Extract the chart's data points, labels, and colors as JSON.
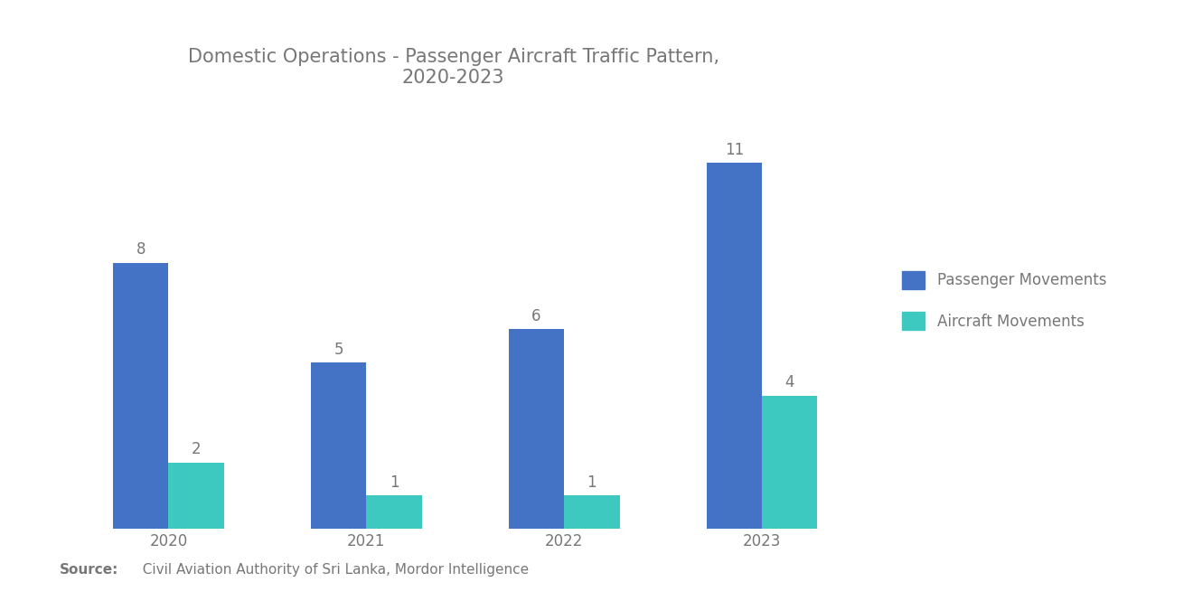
{
  "title": "Domestic Operations - Passenger Aircraft Traffic Pattern,\n2020-2023",
  "years": [
    "2020",
    "2021",
    "2022",
    "2023"
  ],
  "passenger_movements": [
    8,
    5,
    6,
    11
  ],
  "aircraft_movements": [
    2,
    1,
    1,
    4
  ],
  "passenger_color": "#4472C4",
  "aircraft_color": "#3EC9C0",
  "background_color": "#FFFFFF",
  "bar_width": 0.28,
  "ylim": [
    0,
    13
  ],
  "legend_labels": [
    "Passenger Movements",
    "Aircraft Movements"
  ],
  "source_bold": "Source:",
  "source_rest": "  Civil Aviation Authority of Sri Lanka, Mordor Intelligence",
  "title_fontsize": 15,
  "label_fontsize": 12,
  "tick_fontsize": 12,
  "legend_fontsize": 12,
  "source_fontsize": 11,
  "text_color": "#777777"
}
